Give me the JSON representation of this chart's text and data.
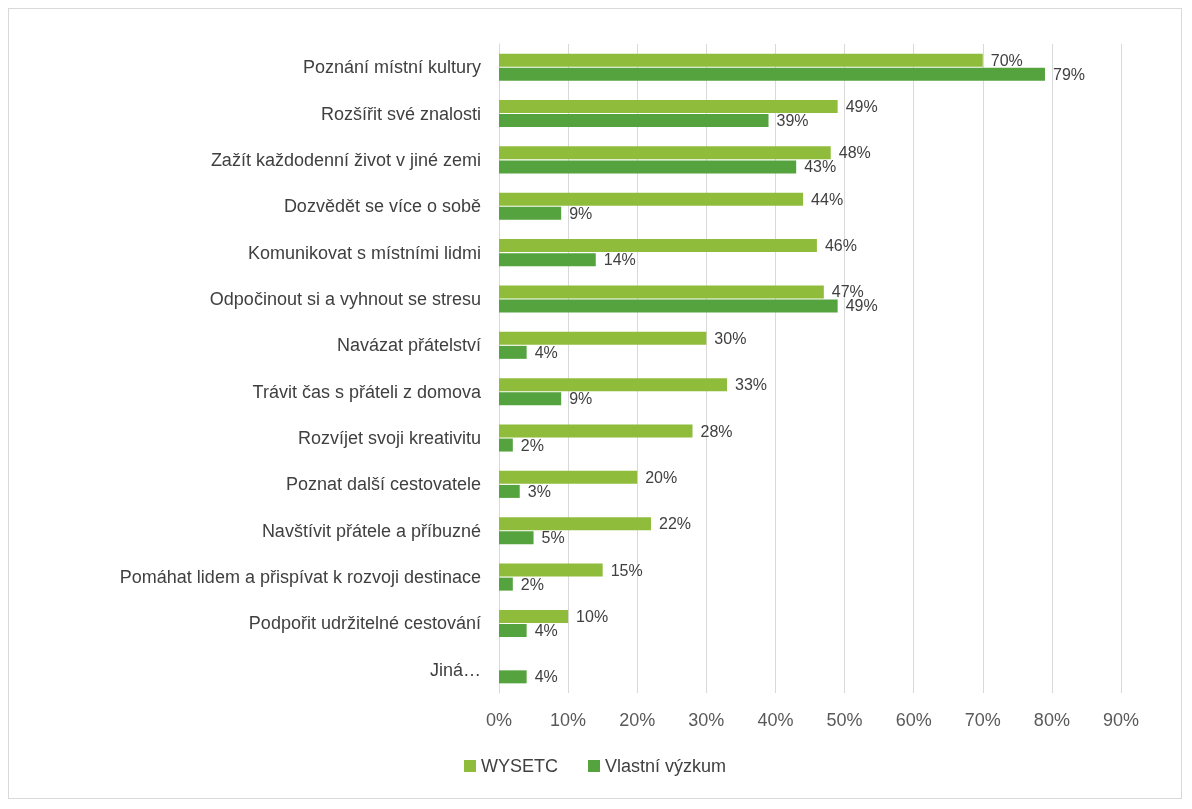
{
  "chart_data": {
    "type": "bar",
    "orientation": "horizontal",
    "categories": [
      "Poznání místní kultury",
      "Rozšířit své znalosti",
      "Zažít každodenní život v jiné zemi",
      "Dozvědět se více o sobě",
      "Komunikovat s místními lidmi",
      "Odpočinout si a vyhnout se stresu",
      "Navázat přátelství",
      "Trávit čas s přáteli z domova",
      "Rozvíjet svoji kreativitu",
      "Poznat další cestovatele",
      "Navštívit přátele a příbuzné",
      "Pomáhat lidem a přispívat k rozvoji destinace",
      "Podpořit udržitelné cestování",
      "Jiná…"
    ],
    "series": [
      {
        "name": "WYSETC",
        "color": "#8fbc3a",
        "values": [
          70,
          49,
          48,
          44,
          46,
          47,
          30,
          33,
          28,
          20,
          22,
          15,
          10,
          null
        ],
        "value_labels": [
          "70%",
          "49%",
          "48%",
          "44%",
          "46%",
          "47%",
          "30%",
          "33%",
          "28%",
          "20%",
          "22%",
          "15%",
          "10%",
          null
        ]
      },
      {
        "name": "Vlastní výzkum",
        "color": "#55a33f",
        "values": [
          79,
          39,
          43,
          9,
          14,
          49,
          4,
          9,
          2,
          3,
          5,
          2,
          4,
          4
        ],
        "value_labels": [
          "79%",
          "39%",
          "43%",
          "9%",
          "14%",
          "49%",
          "4%",
          "9%",
          "2%",
          "3%",
          "5%",
          "2%",
          "4%",
          "4%"
        ]
      }
    ],
    "xlim": [
      0,
      90
    ],
    "xticks": [
      {
        "value": 0,
        "label": "0%"
      },
      {
        "value": 10,
        "label": "10%"
      },
      {
        "value": 20,
        "label": "20%"
      },
      {
        "value": 30,
        "label": "30%"
      },
      {
        "value": 40,
        "label": "40%"
      },
      {
        "value": 50,
        "label": "50%"
      },
      {
        "value": 60,
        "label": "60%"
      },
      {
        "value": 70,
        "label": "70%"
      },
      {
        "value": 80,
        "label": "80%"
      },
      {
        "value": 90,
        "label": "90%"
      }
    ],
    "grid": "x",
    "legend": "bottom"
  }
}
